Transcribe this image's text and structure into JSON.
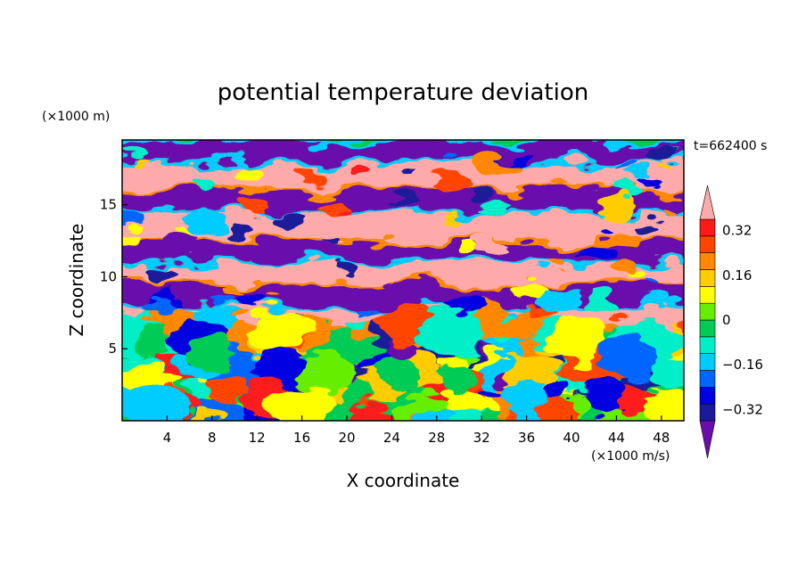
{
  "chart_data": {
    "type": "heatmap",
    "title": "potential temperature deviation",
    "xlabel": "X coordinate",
    "ylabel": "Z coordinate",
    "x_unit": "(×1000 m/s)",
    "y_unit": "(×1000 m)",
    "time_label": "t=662400 s",
    "xlim": [
      0,
      50
    ],
    "ylim": [
      0,
      19.5
    ],
    "x_ticks": [
      4,
      8,
      12,
      16,
      20,
      24,
      28,
      32,
      36,
      40,
      44,
      48
    ],
    "y_ticks": [
      5,
      10,
      15
    ],
    "colorbar": {
      "levels": [
        -0.4,
        -0.36,
        -0.32,
        -0.28,
        -0.24,
        -0.2,
        -0.16,
        -0.12,
        -0.08,
        -0.04,
        0,
        0.04,
        0.08,
        0.12,
        0.16,
        0.2,
        0.24,
        0.28,
        0.32,
        0.36,
        0.4
      ],
      "tick_labels": [
        "0.32",
        "0.16",
        "0",
        "−0.16",
        "−0.32"
      ],
      "tick_values": [
        0.32,
        0.16,
        0,
        -0.16,
        -0.32
      ],
      "extend": "both",
      "colors": [
        "#6a0dad",
        "#1a1a9a",
        "#0000e0",
        "#0066ff",
        "#00ccff",
        "#00eec8",
        "#00cc55",
        "#66ee00",
        "#ffff00",
        "#ffcc00",
        "#ff8800",
        "#ff4400",
        "#ff1a1a",
        "#ffaaaa"
      ]
    },
    "field_bands": [
      {
        "z_range": [
          0,
          6.5
        ],
        "description": "mixed turbulent values, mostly -0.2 to 0.32"
      },
      {
        "z_range": [
          6.5,
          8
        ],
        "value": 0.4
      },
      {
        "z_range": [
          8,
          9.5
        ],
        "value": -0.4
      },
      {
        "z_range": [
          9.5,
          11
        ],
        "value": 0.4
      },
      {
        "z_range": [
          11,
          12.5
        ],
        "value": -0.4
      },
      {
        "z_range": [
          12.5,
          14.5
        ],
        "value": 0.4
      },
      {
        "z_range": [
          14.5,
          16
        ],
        "value": -0.4
      },
      {
        "z_range": [
          16,
          18
        ],
        "value": 0.4
      },
      {
        "z_range": [
          18,
          19.5
        ],
        "value": -0.4
      }
    ]
  }
}
